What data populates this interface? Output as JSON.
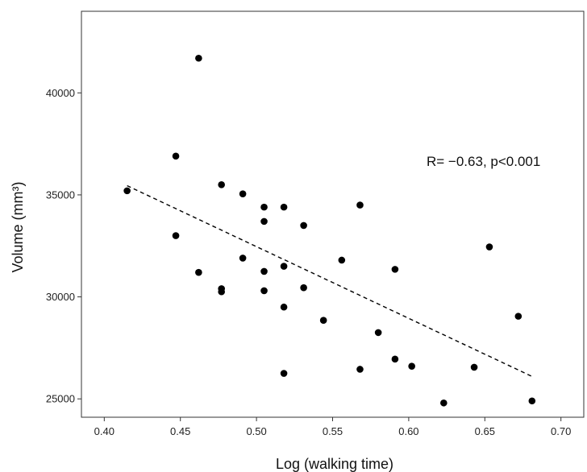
{
  "chart_data": {
    "type": "scatter",
    "title": "",
    "xlabel": "Log (walking time)",
    "ylabel": "Volume (mm³)",
    "xlim": [
      0.385,
      0.715
    ],
    "ylim": [
      24100,
      44000
    ],
    "x_ticks": [
      0.4,
      0.45,
      0.5,
      0.55,
      0.6,
      0.65,
      0.7
    ],
    "x_tick_labels": [
      "0.40",
      "0.45",
      "0.50",
      "0.55",
      "0.60",
      "0.65",
      "0.70"
    ],
    "y_ticks": [
      25000,
      30000,
      35000,
      40000
    ],
    "y_tick_labels": [
      "25000",
      "30000",
      "35000",
      "40000"
    ],
    "grid": false,
    "legend": false,
    "annotation": "R= −0.63, p<0.001",
    "series": [
      {
        "marker_color": "#000000",
        "points": [
          {
            "x": 0.415,
            "y": 35200
          },
          {
            "x": 0.447,
            "y": 36900
          },
          {
            "x": 0.447,
            "y": 33000
          },
          {
            "x": 0.462,
            "y": 41700
          },
          {
            "x": 0.462,
            "y": 31200
          },
          {
            "x": 0.477,
            "y": 35500
          },
          {
            "x": 0.477,
            "y": 30400
          },
          {
            "x": 0.477,
            "y": 30250
          },
          {
            "x": 0.491,
            "y": 35050
          },
          {
            "x": 0.491,
            "y": 31900
          },
          {
            "x": 0.505,
            "y": 34400
          },
          {
            "x": 0.505,
            "y": 33700
          },
          {
            "x": 0.505,
            "y": 31250
          },
          {
            "x": 0.505,
            "y": 30300
          },
          {
            "x": 0.518,
            "y": 34400
          },
          {
            "x": 0.518,
            "y": 31500
          },
          {
            "x": 0.518,
            "y": 29500
          },
          {
            "x": 0.518,
            "y": 26250
          },
          {
            "x": 0.531,
            "y": 33500
          },
          {
            "x": 0.531,
            "y": 30450
          },
          {
            "x": 0.544,
            "y": 28850
          },
          {
            "x": 0.556,
            "y": 31800
          },
          {
            "x": 0.568,
            "y": 34500
          },
          {
            "x": 0.568,
            "y": 26450
          },
          {
            "x": 0.58,
            "y": 28250
          },
          {
            "x": 0.591,
            "y": 31350
          },
          {
            "x": 0.591,
            "y": 26950
          },
          {
            "x": 0.602,
            "y": 26600
          },
          {
            "x": 0.623,
            "y": 24800
          },
          {
            "x": 0.643,
            "y": 26550
          },
          {
            "x": 0.653,
            "y": 32450
          },
          {
            "x": 0.672,
            "y": 29050
          },
          {
            "x": 0.681,
            "y": 24900
          }
        ]
      }
    ],
    "trendline": {
      "style": "dashed",
      "color": "#000000",
      "x": [
        0.415,
        0.681
      ],
      "y": [
        35450,
        26100
      ]
    }
  }
}
